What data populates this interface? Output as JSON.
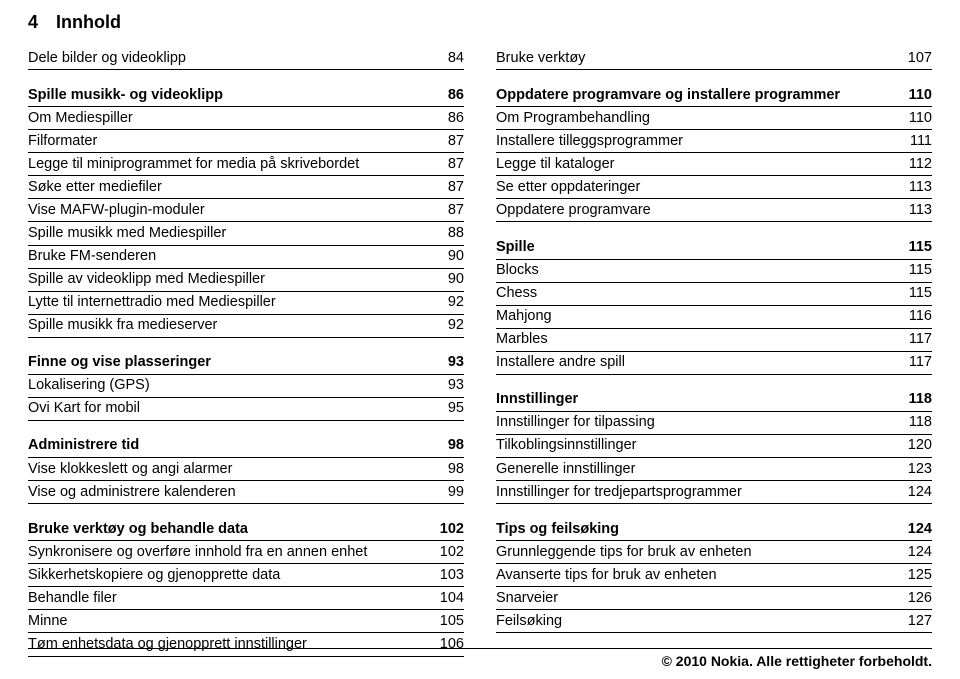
{
  "header": {
    "page_number": "4",
    "title": "Innhold"
  },
  "left": {
    "groups": [
      {
        "rows": [
          {
            "label": "Dele bilder og videoklipp",
            "page": "84",
            "section": false
          }
        ]
      },
      {
        "rows": [
          {
            "label": "Spille musikk- og videoklipp",
            "page": "86",
            "section": true
          },
          {
            "label": "Om Mediespiller",
            "page": "86",
            "section": false
          },
          {
            "label": "Filformater",
            "page": "87",
            "section": false
          },
          {
            "label": "Legge til miniprogrammet for media på skrivebordet",
            "page": "87",
            "section": false
          },
          {
            "label": "Søke etter mediefiler",
            "page": "87",
            "section": false
          },
          {
            "label": "Vise MAFW-plugin-moduler",
            "page": "87",
            "section": false
          },
          {
            "label": "Spille musikk med Mediespiller",
            "page": "88",
            "section": false
          },
          {
            "label": "Bruke FM-senderen",
            "page": "90",
            "section": false
          },
          {
            "label": "Spille av videoklipp med Mediespiller",
            "page": "90",
            "section": false
          },
          {
            "label": "Lytte til internettradio med Mediespiller",
            "page": "92",
            "section": false
          },
          {
            "label": "Spille musikk fra medieserver",
            "page": "92",
            "section": false
          }
        ]
      },
      {
        "rows": [
          {
            "label": "Finne og vise plasseringer",
            "page": "93",
            "section": true
          },
          {
            "label": "Lokalisering (GPS)",
            "page": "93",
            "section": false
          },
          {
            "label": "Ovi Kart for mobil",
            "page": "95",
            "section": false
          }
        ]
      },
      {
        "rows": [
          {
            "label": "Administrere tid",
            "page": "98",
            "section": true
          },
          {
            "label": "Vise klokkeslett og angi alarmer",
            "page": "98",
            "section": false
          },
          {
            "label": "Vise og administrere kalenderen",
            "page": "99",
            "section": false
          }
        ]
      },
      {
        "rows": [
          {
            "label": "Bruke verktøy og behandle data",
            "page": "102",
            "section": true
          },
          {
            "label": "Synkronisere og overføre innhold fra en annen enhet",
            "page": "102",
            "section": false
          },
          {
            "label": "Sikkerhetskopiere og gjenopprette data",
            "page": "103",
            "section": false
          },
          {
            "label": "Behandle filer",
            "page": "104",
            "section": false
          },
          {
            "label": "Minne",
            "page": "105",
            "section": false
          },
          {
            "label": "Tøm enhetsdata og gjenopprett innstillinger",
            "page": "106",
            "section": false
          }
        ]
      }
    ]
  },
  "right": {
    "groups": [
      {
        "rows": [
          {
            "label": "Bruke verktøy",
            "page": "107",
            "section": false
          }
        ]
      },
      {
        "rows": [
          {
            "label": "Oppdatere programvare og installere programmer",
            "page": "110",
            "section": true
          },
          {
            "label": "Om Programbehandling",
            "page": "110",
            "section": false
          },
          {
            "label": "Installere tilleggsprogrammer",
            "page": "111",
            "section": false
          },
          {
            "label": "Legge til kataloger",
            "page": "112",
            "section": false
          },
          {
            "label": "Se etter oppdateringer",
            "page": "113",
            "section": false
          },
          {
            "label": "Oppdatere programvare",
            "page": "113",
            "section": false
          }
        ]
      },
      {
        "rows": [
          {
            "label": "Spille",
            "page": "115",
            "section": true
          },
          {
            "label": "Blocks",
            "page": "115",
            "section": false
          },
          {
            "label": "Chess",
            "page": "115",
            "section": false
          },
          {
            "label": "Mahjong",
            "page": "116",
            "section": false
          },
          {
            "label": "Marbles",
            "page": "117",
            "section": false
          },
          {
            "label": "Installere andre spill",
            "page": "117",
            "section": false
          }
        ]
      },
      {
        "rows": [
          {
            "label": "Innstillinger",
            "page": "118",
            "section": true
          },
          {
            "label": "Innstillinger for tilpassing",
            "page": "118",
            "section": false
          },
          {
            "label": "Tilkoblingsinnstillinger",
            "page": "120",
            "section": false
          },
          {
            "label": "Generelle innstillinger",
            "page": "123",
            "section": false
          },
          {
            "label": "Innstillinger for tredjepartsprogrammer",
            "page": "124",
            "section": false
          }
        ]
      },
      {
        "rows": [
          {
            "label": "Tips og feilsøking",
            "page": "124",
            "section": true
          },
          {
            "label": "Grunnleggende tips for bruk av enheten",
            "page": "124",
            "section": false
          },
          {
            "label": "Avanserte tips for bruk av enheten",
            "page": "125",
            "section": false
          },
          {
            "label": "Snarveier",
            "page": "126",
            "section": false
          },
          {
            "label": "Feilsøking",
            "page": "127",
            "section": false
          }
        ]
      }
    ]
  },
  "footer": {
    "text": "© 2010 Nokia. Alle rettigheter forbeholdt."
  }
}
